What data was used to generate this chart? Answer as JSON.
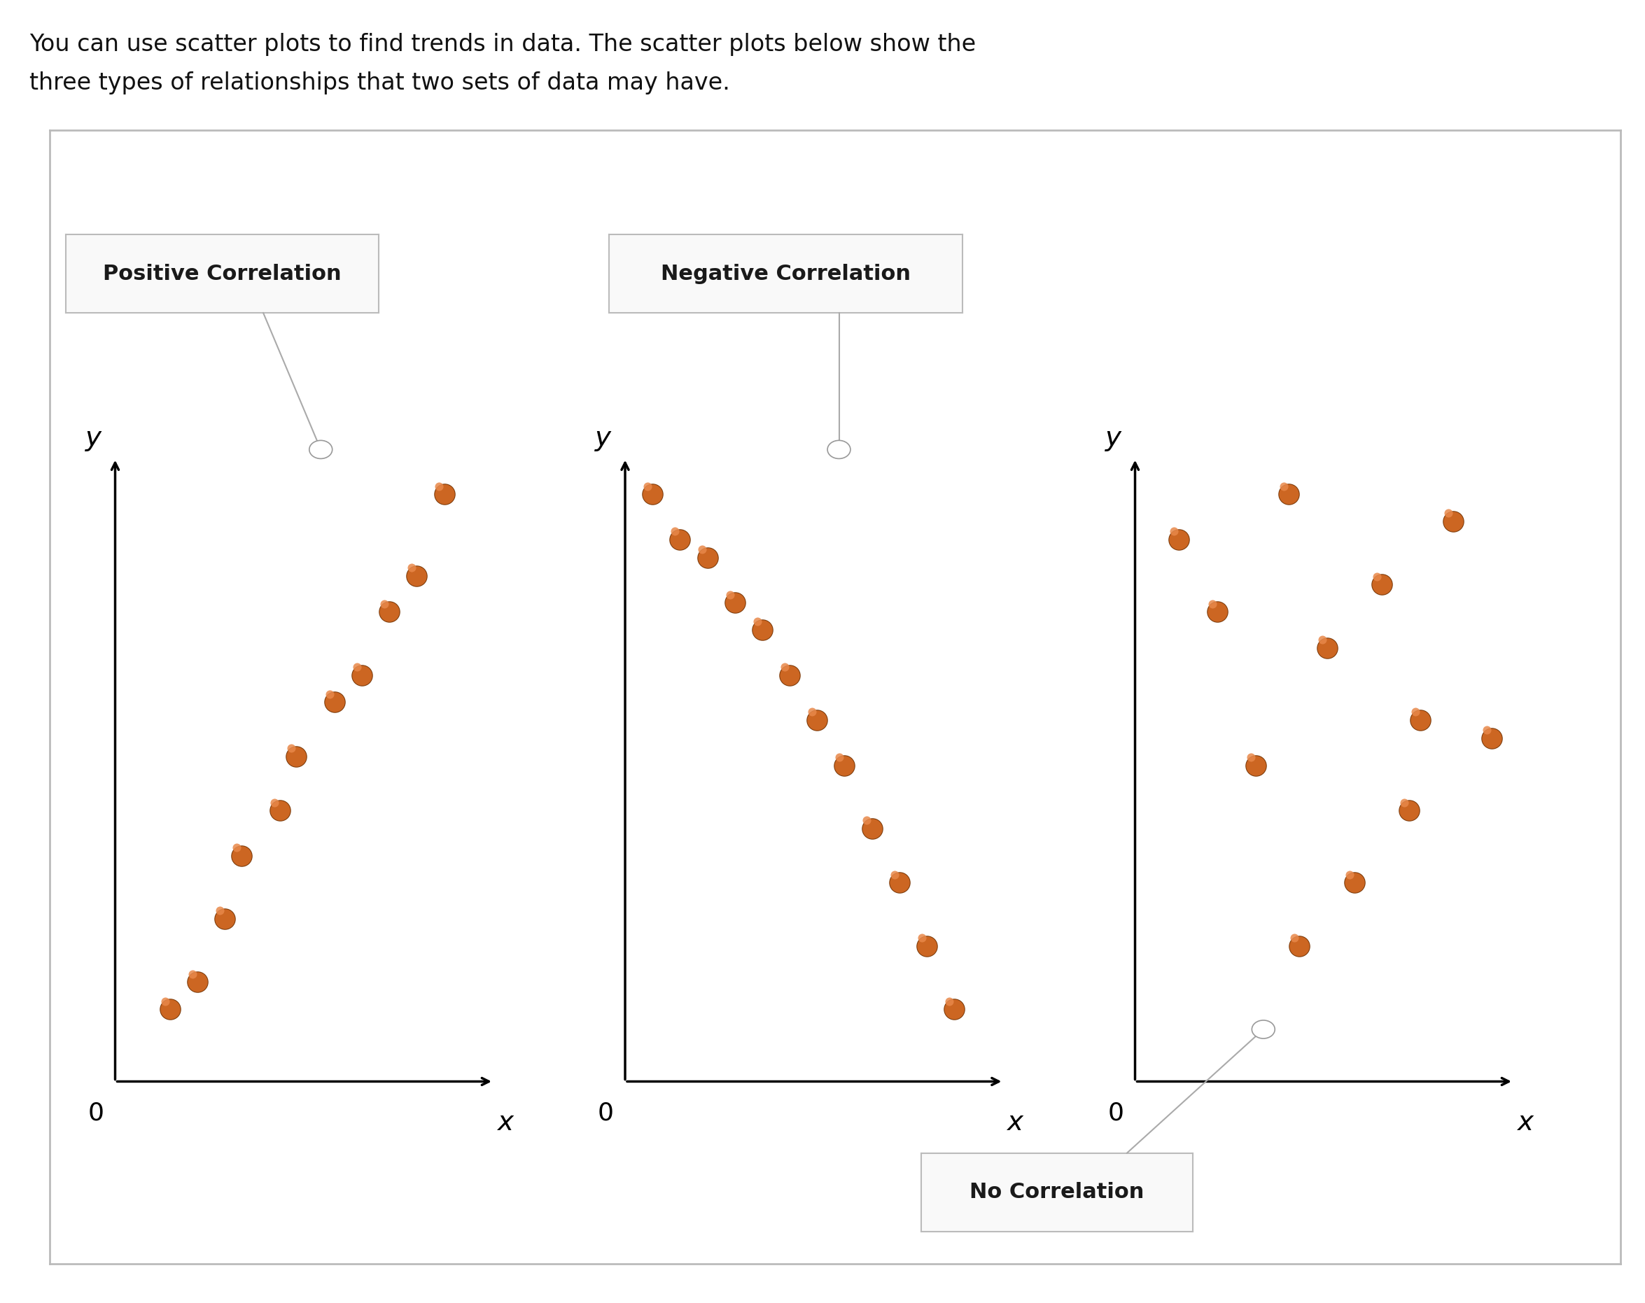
{
  "title_line1": "You can use scatter plots to find trends in data. The scatter plots below show the",
  "title_line2": "three types of relationships that two sets of data may have.",
  "title_fontsize": 24,
  "panel_bg": "#ffffff",
  "panel_border": "#bbbbbb",
  "dot_color_main": "#CC6622",
  "dot_color_highlight": "#e8884a",
  "dot_edge_color": "#7a3a0a",
  "dot_size": 420,
  "axis_lw": 2.5,
  "label_fontsize": 22,
  "axis_label_fontsize": 26,
  "pos_corr_x": [
    1.0,
    1.5,
    2.0,
    2.3,
    3.0,
    3.3,
    4.0,
    4.5,
    5.0,
    5.5,
    6.0
  ],
  "pos_corr_y": [
    0.8,
    1.1,
    1.8,
    2.5,
    3.0,
    3.6,
    4.2,
    4.5,
    5.2,
    5.6,
    6.5
  ],
  "neg_corr_x": [
    0.5,
    1.0,
    1.5,
    2.0,
    2.5,
    3.0,
    3.5,
    4.0,
    4.5,
    5.0,
    5.5,
    6.0
  ],
  "neg_corr_y": [
    6.5,
    6.0,
    5.8,
    5.3,
    5.0,
    4.5,
    4.0,
    3.5,
    2.8,
    2.2,
    1.5,
    0.8
  ],
  "no_corr_x": [
    0.8,
    1.5,
    2.2,
    2.8,
    3.5,
    4.0,
    4.5,
    5.2,
    5.8,
    6.5,
    3.0,
    5.0
  ],
  "no_corr_y": [
    6.0,
    5.2,
    3.5,
    6.5,
    4.8,
    2.2,
    5.5,
    4.0,
    6.2,
    3.8,
    1.5,
    3.0
  ],
  "label_pos_corr": "Positive Correlation",
  "label_neg_corr": "Negative Correlation",
  "label_no_corr": "No Correlation",
  "label_box_bg": "#f8f8f8",
  "label_box_border": "#cccccc"
}
